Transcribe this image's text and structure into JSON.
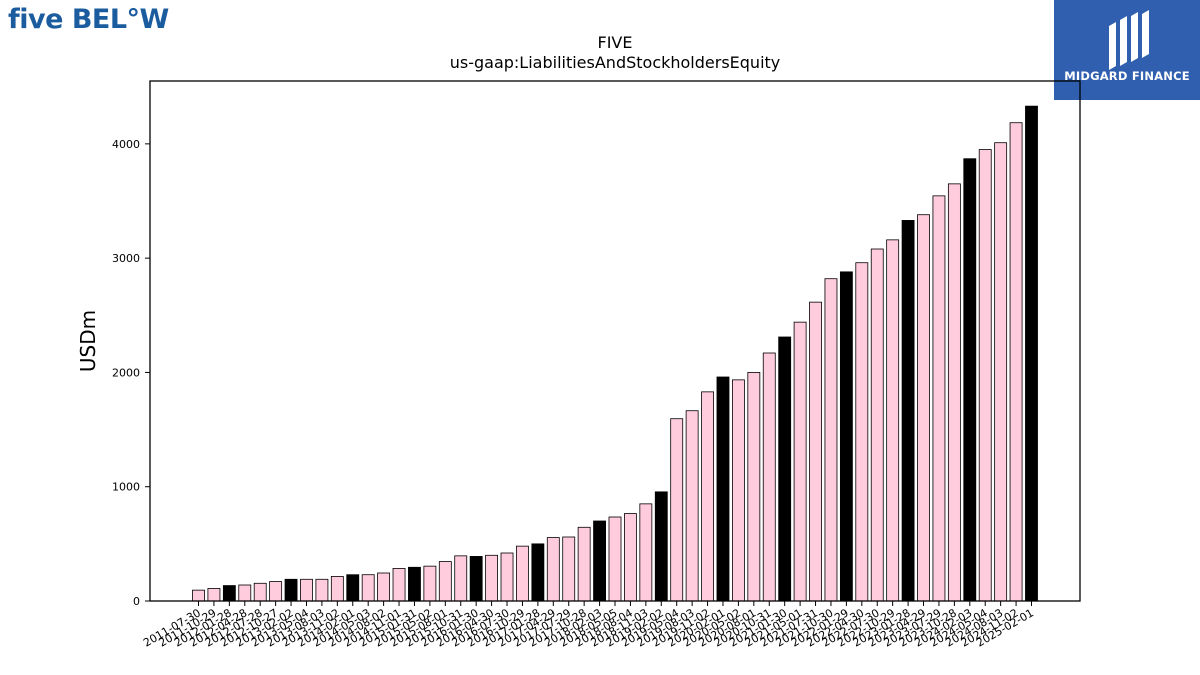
{
  "brand_left": "five BEL°W",
  "brand_right": "MIDGARD FINANCE",
  "colors": {
    "normal_bar": "#ffccdd",
    "highlight_bar": "#000000",
    "logo_left": "#1b5c9e",
    "logo_right_bg": "#2f5fae"
  },
  "chart_data": {
    "type": "bar",
    "title": "FIVE",
    "subtitle": "us-gaap:LiabilitiesAndStockholdersEquity",
    "xlabel": "",
    "ylabel": "USDm",
    "ylim": [
      0,
      4550
    ],
    "yticks": [
      0,
      1000,
      2000,
      3000,
      4000
    ],
    "grid": false,
    "categories": [
      "2011-07-30",
      "2011-10-29",
      "2012-01-28",
      "2012-04-28",
      "2012-07-28",
      "2012-10-27",
      "2013-02-02",
      "2013-05-04",
      "2013-08-03",
      "2013-11-02",
      "2014-02-01",
      "2014-05-03",
      "2014-08-02",
      "2014-11-01",
      "2015-01-31",
      "2015-05-02",
      "2015-08-01",
      "2015-10-31",
      "2016-01-30",
      "2016-04-30",
      "2016-07-30",
      "2016-10-29",
      "2017-01-28",
      "2017-04-29",
      "2017-07-29",
      "2017-10-28",
      "2018-02-03",
      "2018-05-05",
      "2018-08-04",
      "2018-11-03",
      "2019-02-02",
      "2019-05-04",
      "2019-08-03",
      "2019-11-02",
      "2020-02-01",
      "2020-05-02",
      "2020-08-01",
      "2020-10-31",
      "2021-01-30",
      "2021-05-01",
      "2021-07-31",
      "2021-10-30",
      "2022-01-29",
      "2022-04-30",
      "2022-07-30",
      "2022-10-29",
      "2023-01-28",
      "2023-04-29",
      "2023-07-29",
      "2023-10-28",
      "2024-02-03",
      "2024-05-04",
      "2024-08-03",
      "2024-11-02",
      "2025-02-01"
    ],
    "values": [
      95,
      110,
      135,
      140,
      155,
      170,
      190,
      190,
      190,
      215,
      230,
      230,
      245,
      285,
      295,
      305,
      345,
      395,
      390,
      400,
      420,
      480,
      500,
      555,
      560,
      645,
      700,
      735,
      765,
      850,
      955,
      1595,
      1665,
      1830,
      1960,
      1935,
      2000,
      2170,
      2310,
      2440,
      2615,
      2820,
      2880,
      2960,
      3080,
      3160,
      3330,
      3380,
      3545,
      3650,
      3870,
      3950,
      4010,
      4185,
      4330
    ],
    "highlight": [
      false,
      false,
      true,
      false,
      false,
      false,
      true,
      false,
      false,
      false,
      true,
      false,
      false,
      false,
      true,
      false,
      false,
      false,
      true,
      false,
      false,
      false,
      true,
      false,
      false,
      false,
      true,
      false,
      false,
      false,
      true,
      false,
      false,
      false,
      true,
      false,
      false,
      false,
      true,
      false,
      false,
      false,
      true,
      false,
      false,
      false,
      true,
      false,
      false,
      false,
      true,
      false,
      false,
      false,
      true
    ]
  }
}
